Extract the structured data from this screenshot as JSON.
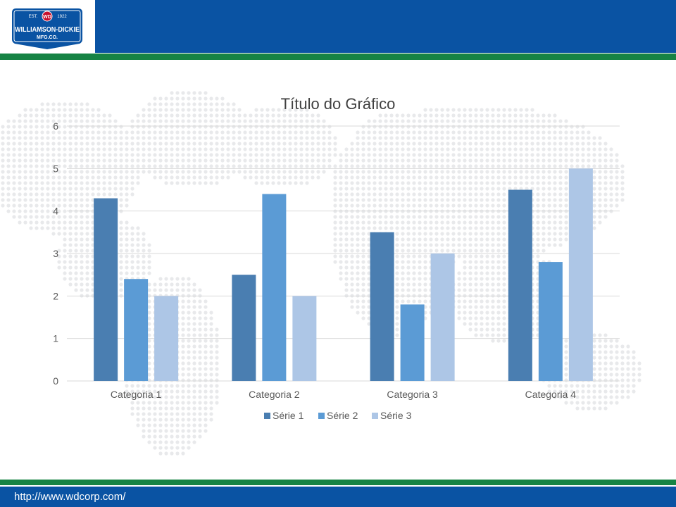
{
  "brand": {
    "logo_est": "EST.",
    "logo_year": "1922",
    "logo_name": "WILLIAMSON-DICKIE",
    "logo_sub": "MFG.CO.",
    "monogram": "WD",
    "header_color": "#0a53a3",
    "accent_color": "#168344"
  },
  "footer": {
    "url": "http://www.wdcorp.com/"
  },
  "chart_data": {
    "type": "bar",
    "title": "Título do Gráfico",
    "categories": [
      "Categoria 1",
      "Categoria 2",
      "Categoria 3",
      "Categoria 4"
    ],
    "series": [
      {
        "name": "Série 1",
        "values": [
          4.3,
          2.5,
          3.5,
          4.5
        ],
        "color": "#4a7eb1"
      },
      {
        "name": "Série 2",
        "values": [
          2.4,
          4.4,
          1.8,
          2.8
        ],
        "color": "#5b9bd5"
      },
      {
        "name": "Série 3",
        "values": [
          2,
          2,
          3,
          5
        ],
        "color": "#adc6e6"
      }
    ],
    "ylim": [
      0,
      6
    ],
    "yticks": [
      0,
      1,
      2,
      3,
      4,
      5,
      6
    ],
    "grid": true,
    "legend": "bottom",
    "xlabel": "",
    "ylabel": ""
  }
}
